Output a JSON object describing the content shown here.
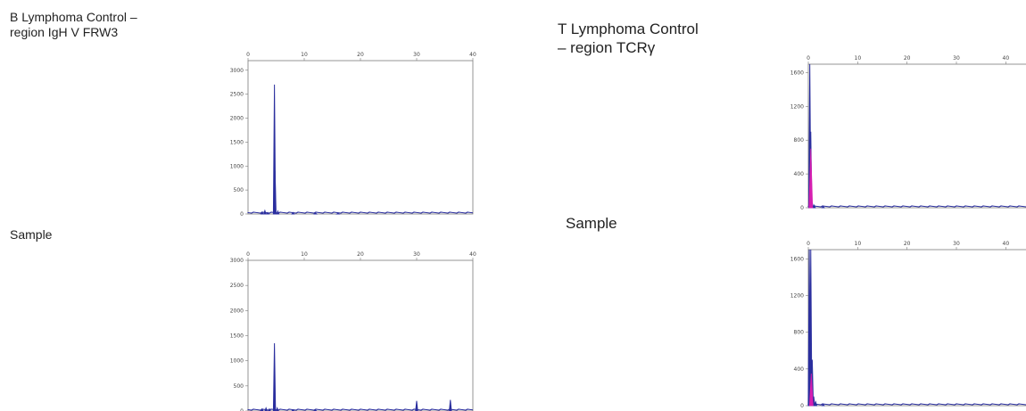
{
  "labels": {
    "left_control_line1": "B Lymphoma Control –",
    "left_control_line2": "region IgH V FRW3",
    "left_sample": "Sample",
    "right_control_line1": "T Lymphoma Control",
    "right_control_line2": "– region TCRγ",
    "right_sample": "Sample"
  },
  "colors": {
    "trace": "#2b2f9e",
    "peak_accent": "#d61fb0",
    "frame": "#7a7a7a"
  },
  "chart_data": [
    {
      "type": "line",
      "xlim": [
        0,
        40
      ],
      "xticks": [
        0,
        10,
        20,
        30,
        40
      ],
      "ylim": [
        0,
        3200
      ],
      "yticks": [
        0,
        500,
        1000,
        1500,
        2000,
        2500,
        3000
      ],
      "peaks": [
        [
          2.5,
          40
        ],
        [
          3,
          70
        ],
        [
          3.5,
          30
        ],
        [
          4.7,
          2700
        ],
        [
          4.8,
          900
        ],
        [
          5.3,
          60
        ],
        [
          8,
          30
        ],
        [
          12,
          20
        ],
        [
          16,
          15
        ]
      ],
      "accent_peaks": []
    },
    {
      "type": "line",
      "xlim": [
        0,
        40
      ],
      "xticks": [
        0,
        10,
        20,
        30,
        40
      ],
      "ylim": [
        0,
        3000
      ],
      "yticks": [
        0,
        500,
        1000,
        1500,
        2000,
        2500,
        3000
      ],
      "peaks": [
        [
          2.5,
          40
        ],
        [
          3.2,
          60
        ],
        [
          3.8,
          40
        ],
        [
          4.7,
          1350
        ],
        [
          5.2,
          60
        ],
        [
          8,
          25
        ],
        [
          12,
          20
        ],
        [
          30,
          200
        ],
        [
          36,
          220
        ]
      ],
      "accent_peaks": []
    },
    {
      "type": "line",
      "xlim": [
        0,
        45
      ],
      "xticks": [
        0,
        10,
        20,
        30,
        40
      ],
      "ylim": [
        0,
        1700
      ],
      "yticks": [
        0,
        400,
        800,
        1200,
        1600
      ],
      "peaks": [
        [
          0.3,
          1700
        ],
        [
          0.5,
          900
        ],
        [
          0.8,
          60
        ],
        [
          1.2,
          30
        ],
        [
          3,
          15
        ]
      ],
      "accent_peaks": [
        [
          0.5,
          700
        ]
      ]
    },
    {
      "type": "line",
      "xlim": [
        0,
        45
      ],
      "xticks": [
        0,
        10,
        20,
        30,
        40
      ],
      "ylim": [
        0,
        1700
      ],
      "yticks": [
        0,
        400,
        800,
        1200,
        1600
      ],
      "peaks": [
        [
          0.2,
          1700
        ],
        [
          0.5,
          1700
        ],
        [
          0.8,
          500
        ],
        [
          1.1,
          100
        ],
        [
          1.5,
          40
        ],
        [
          3,
          15
        ]
      ],
      "accent_peaks": [
        [
          0.6,
          350
        ]
      ]
    }
  ]
}
